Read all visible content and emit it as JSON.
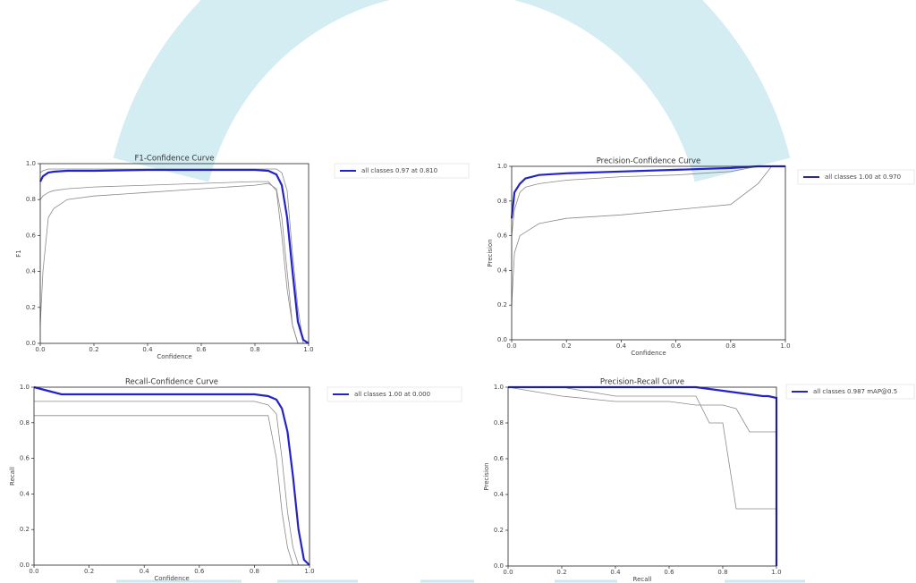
{
  "chart_data": [
    {
      "type": "line",
      "title": "F1-Confidence Curve",
      "xlabel": "Confidence",
      "ylabel": "F1",
      "xlim": [
        0,
        1
      ],
      "ylim": [
        0,
        1
      ],
      "xticks": [
        {
          "value": 0,
          "label": "0.0"
        },
        0.2,
        0.4,
        0.6,
        0.8,
        {
          "value": 1,
          "label": "1.0"
        }
      ],
      "yticks": [
        {
          "value": 0,
          "label": "0.0"
        },
        0.2,
        0.4,
        0.6,
        0.8,
        {
          "value": 1,
          "label": "1.0"
        }
      ],
      "x": [
        0,
        0.01,
        0.03,
        0.05,
        0.1,
        0.2,
        0.4,
        0.6,
        0.8,
        0.85,
        0.88,
        0.9,
        0.92,
        0.94,
        0.96,
        0.98,
        1.0
      ],
      "series": [
        {
          "color": "#8a8a8a",
          "values": [
            0.8,
            0.82,
            0.84,
            0.85,
            0.86,
            0.87,
            0.88,
            0.89,
            0.9,
            0.9,
            0.85,
            0.6,
            0.3,
            0.1,
            0,
            0,
            0
          ]
        },
        {
          "color": "#8a8a8a",
          "values": [
            0.1,
            0.4,
            0.7,
            0.75,
            0.8,
            0.82,
            0.84,
            0.86,
            0.88,
            0.89,
            0.86,
            0.7,
            0.4,
            0.1,
            0,
            0,
            0
          ]
        },
        {
          "color": "#8a8a8a",
          "values": [
            0.95,
            0.96,
            0.97,
            0.97,
            0.97,
            0.97,
            0.97,
            0.97,
            0.97,
            0.97,
            0.97,
            0.95,
            0.85,
            0.5,
            0.2,
            0,
            0
          ]
        },
        {
          "name": "all classes 0.97 at 0.810",
          "color": "#2323c8",
          "values": [
            0.9,
            0.93,
            0.95,
            0.955,
            0.96,
            0.96,
            0.965,
            0.965,
            0.965,
            0.96,
            0.94,
            0.88,
            0.7,
            0.4,
            0.12,
            0.02,
            0
          ]
        }
      ]
    },
    {
      "type": "line",
      "title": "Precision-Confidence Curve",
      "xlabel": "Confidence",
      "ylabel": "Precision",
      "xlim": [
        0,
        1
      ],
      "ylim": [
        0,
        1
      ],
      "xticks": [
        {
          "value": 0,
          "label": "0.0"
        },
        0.2,
        0.4,
        0.6,
        0.8,
        {
          "value": 1,
          "label": "1.0"
        }
      ],
      "yticks": [
        {
          "value": 0,
          "label": "0.0"
        },
        0.2,
        0.4,
        0.6,
        0.8,
        {
          "value": 1,
          "label": "1.0"
        }
      ],
      "x": [
        0,
        0.01,
        0.03,
        0.05,
        0.1,
        0.2,
        0.4,
        0.6,
        0.8,
        0.9,
        0.95,
        1.0
      ],
      "series": [
        {
          "color": "#8a8a8a",
          "values": [
            0.2,
            0.5,
            0.6,
            0.62,
            0.67,
            0.7,
            0.72,
            0.75,
            0.78,
            0.9,
            1,
            1
          ]
        },
        {
          "color": "#8a8a8a",
          "values": [
            0.6,
            0.75,
            0.85,
            0.88,
            0.9,
            0.92,
            0.94,
            0.95,
            0.97,
            1,
            1,
            1
          ]
        },
        {
          "name": "all classes 1.00 at 0.970",
          "color": "#2323c8",
          "values": [
            0.7,
            0.85,
            0.9,
            0.93,
            0.95,
            0.96,
            0.97,
            0.98,
            0.99,
            1,
            1,
            1
          ]
        }
      ]
    },
    {
      "type": "line",
      "title": "Recall-Confidence Curve",
      "xlabel": "Confidence",
      "ylabel": "Recall",
      "xlim": [
        0,
        1
      ],
      "ylim": [
        0,
        1
      ],
      "xticks": [
        {
          "value": 0,
          "label": "0.0"
        },
        0.2,
        0.4,
        0.6,
        0.8,
        {
          "value": 1,
          "label": "1.0"
        }
      ],
      "yticks": [
        {
          "value": 0,
          "label": "0.0"
        },
        0.2,
        0.4,
        0.6,
        0.8,
        {
          "value": 1,
          "label": "1.0"
        }
      ],
      "x": [
        0,
        0.05,
        0.1,
        0.2,
        0.4,
        0.6,
        0.8,
        0.85,
        0.88,
        0.9,
        0.92,
        0.94,
        0.96,
        0.98,
        1.0
      ],
      "series": [
        {
          "color": "#8a8a8a",
          "values": [
            0.84,
            0.84,
            0.84,
            0.84,
            0.84,
            0.84,
            0.84,
            0.84,
            0.6,
            0.3,
            0.1,
            0,
            0,
            0,
            0
          ]
        },
        {
          "color": "#8a8a8a",
          "values": [
            0.92,
            0.92,
            0.92,
            0.92,
            0.92,
            0.92,
            0.92,
            0.9,
            0.85,
            0.6,
            0.3,
            0.1,
            0,
            0,
            0
          ]
        },
        {
          "name": "all classes 1.00 at 0.000",
          "color": "#2323c8",
          "values": [
            1,
            0.98,
            0.96,
            0.96,
            0.96,
            0.96,
            0.96,
            0.95,
            0.93,
            0.88,
            0.75,
            0.5,
            0.2,
            0.03,
            0
          ]
        }
      ]
    },
    {
      "type": "line",
      "title": "Precision-Recall Curve",
      "xlabel": "Recall",
      "ylabel": "Precision",
      "xlim": [
        0,
        1
      ],
      "ylim": [
        0,
        1
      ],
      "xticks": [
        {
          "value": 0,
          "label": "0.0"
        },
        0.2,
        0.4,
        0.6,
        0.8,
        {
          "value": 1,
          "label": "1.0"
        }
      ],
      "yticks": [
        {
          "value": 0,
          "label": "0.0"
        },
        0.2,
        0.4,
        0.6,
        0.8,
        {
          "value": 1,
          "label": "1.0"
        }
      ],
      "x": [
        0,
        0.2,
        0.4,
        0.6,
        0.7,
        0.75,
        0.8,
        0.85,
        0.9,
        0.95,
        0.97,
        1.0,
        1.0
      ],
      "series": [
        {
          "color": "#8a8a8a",
          "values": [
            1,
            1,
            0.95,
            0.95,
            0.95,
            0.8,
            0.8,
            0.32,
            0.32,
            0.32,
            0.32,
            0.32,
            0
          ]
        },
        {
          "color": "#8a8a8a",
          "values": [
            1,
            0.95,
            0.92,
            0.92,
            0.9,
            0.9,
            0.9,
            0.88,
            0.75,
            0.75,
            0.75,
            0.75,
            0
          ]
        },
        {
          "name": "all classes 0.987 mAP@0.5",
          "color": "#2323c8",
          "values": [
            1,
            1,
            1,
            1,
            1,
            0.99,
            0.98,
            0.97,
            0.96,
            0.95,
            0.95,
            0.94,
            0
          ]
        }
      ]
    }
  ]
}
